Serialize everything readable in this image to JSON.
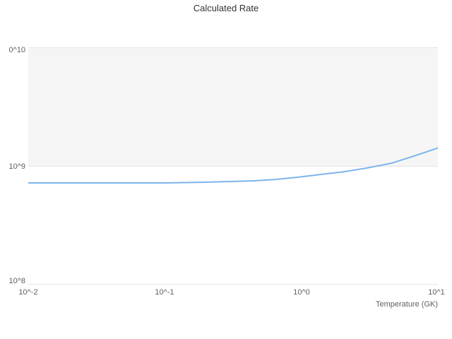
{
  "title": "Calculated Rate",
  "x_axis": {
    "title": "Temperature (GK)",
    "ticks": [
      "10^-2",
      "10^-1",
      "10^0",
      "10^1"
    ]
  },
  "y_axis": {
    "ticks_display": [
      "0^10",
      "10^9",
      "10^8"
    ]
  },
  "colors": {
    "line": "#7cb5ec",
    "band": "#f5f5f5",
    "grid": "#e6e6e6",
    "label": "#606060",
    "title": "#333333"
  },
  "chart_data": {
    "type": "line",
    "title": "Calculated Rate",
    "xlabel": "Temperature (GK)",
    "ylabel": "",
    "x_scale": "log",
    "y_scale": "log",
    "xlim": [
      0.01,
      10
    ],
    "ylim": [
      100000000,
      10000000000
    ],
    "grid": true,
    "legend_position": "none",
    "series": [
      {
        "name": "Calculated Rate",
        "x": [
          0.01,
          0.013,
          0.018,
          0.025,
          0.035,
          0.05,
          0.07,
          0.1,
          0.14,
          0.2,
          0.3,
          0.45,
          0.65,
          1.0,
          1.4,
          2.0,
          3.0,
          4.5,
          6.5,
          8.0,
          10.0
        ],
        "y": [
          720000000,
          720000000,
          720000000,
          720000000,
          720000000,
          720000000,
          720000000,
          720000000,
          725000000,
          730000000,
          740000000,
          750000000,
          770000000,
          810000000,
          850000000,
          890000000,
          960000000,
          1050000000,
          1200000000,
          1300000000,
          1420000000
        ]
      }
    ]
  }
}
